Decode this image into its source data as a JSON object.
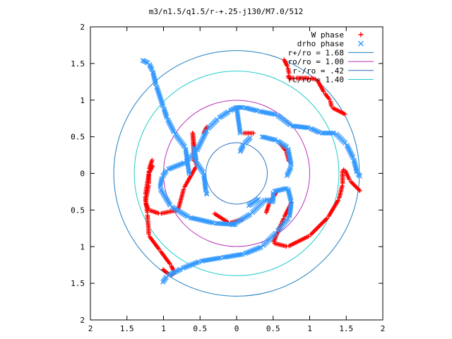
{
  "chart_data": {
    "type": "scatter",
    "title": "m3/n1.5/q1.5/r-+.25-j130/M7.0/512",
    "xlabel": "",
    "ylabel": "",
    "xlim": [
      -2,
      2
    ],
    "ylim": [
      -2,
      2
    ],
    "x_tick_labels": [
      "2",
      "1.5",
      "1",
      "0.5",
      "0",
      "0.5",
      "1",
      "1.5",
      "2"
    ],
    "y_tick_labels": [
      "2",
      "1.5",
      "1",
      "0.5",
      "0",
      "0.5",
      "1",
      "1.5",
      "2"
    ],
    "grid": false,
    "legend_position": "top-right",
    "legend": [
      {
        "label": "W phase",
        "kind": "marker",
        "marker": "+",
        "color": "#ff0000"
      },
      {
        "label": "drho phase",
        "kind": "marker",
        "marker": "x",
        "color": "#3399ff"
      },
      {
        "label": "r+/ro = 1.68",
        "kind": "line",
        "color": "#1f7fbf"
      },
      {
        "label": "ro/ro = 1.00",
        "kind": "line",
        "color": "#b833b8"
      },
      {
        "label": "r-/ro = .42",
        "kind": "line",
        "color": "#2a6fbf"
      },
      {
        "label": "rc/ro = 1.40",
        "kind": "line",
        "color": "#22cccc"
      }
    ],
    "circles": [
      {
        "name": "r+/ro = 1.68",
        "r": 1.68,
        "color": "#1f7fbf"
      },
      {
        "name": "ro/ro = 1.00",
        "r": 1.0,
        "color": "#b833b8"
      },
      {
        "name": "r-/ro = .42",
        "r": 0.42,
        "color": "#2a6fbf"
      },
      {
        "name": "rc/ro = 1.40",
        "r": 1.4,
        "color": "#22cccc"
      }
    ],
    "series": [
      {
        "name": "W phase",
        "marker": "+",
        "color": "#ff0000",
        "curves": [
          [
            [
              0.65,
              1.55
            ],
            [
              0.7,
              1.45
            ],
            [
              0.72,
              1.35
            ],
            [
              0.7,
              1.3
            ],
            [
              0.8,
              1.3
            ],
            [
              1.0,
              1.3
            ],
            [
              1.1,
              1.28
            ],
            [
              1.2,
              1.1
            ],
            [
              1.28,
              1.0
            ],
            [
              1.3,
              0.9
            ],
            [
              1.5,
              0.8
            ]
          ],
          [
            [
              -0.6,
              0.55
            ],
            [
              -0.55,
              0.1
            ],
            [
              -0.72,
              -0.2
            ],
            [
              -0.8,
              -0.5
            ],
            [
              -1.05,
              -0.55
            ],
            [
              -1.2,
              -0.5
            ],
            [
              -1.25,
              -0.4
            ],
            [
              -1.2,
              -0.15
            ],
            [
              -1.2,
              0.05
            ],
            [
              -1.15,
              0.2
            ]
          ],
          [
            [
              -1.15,
              0.1
            ],
            [
              -1.2,
              0.0
            ],
            [
              -1.25,
              -0.3
            ],
            [
              -1.22,
              -0.55
            ],
            [
              -1.2,
              -0.85
            ],
            [
              -1.05,
              -1.05
            ],
            [
              -0.9,
              -1.25
            ],
            [
              -0.85,
              -1.35
            ],
            [
              -0.9,
              -1.4
            ],
            [
              -1.02,
              -1.3
            ]
          ],
          [
            [
              0.75,
              -0.4
            ],
            [
              0.65,
              -0.6
            ],
            [
              0.5,
              -0.95
            ],
            [
              0.7,
              -1.0
            ],
            [
              1.0,
              -0.85
            ],
            [
              1.25,
              -0.6
            ],
            [
              1.4,
              -0.35
            ],
            [
              1.45,
              -0.15
            ],
            [
              1.45,
              0.05
            ],
            [
              1.48,
              0.05
            ],
            [
              1.55,
              -0.1
            ],
            [
              1.7,
              -0.25
            ]
          ],
          [
            [
              0.1,
              0.55
            ],
            [
              0.25,
              0.55
            ]
          ],
          [
            [
              -0.6,
              0.55
            ],
            [
              -0.58,
              0.15
            ]
          ],
          [
            [
              -0.45,
              0.55
            ],
            [
              -0.4,
              0.65
            ]
          ],
          [
            [
              0.55,
              -0.25
            ],
            [
              0.45,
              -0.4
            ],
            [
              0.4,
              -0.55
            ]
          ],
          [
            [
              0.6,
              0.4
            ],
            [
              0.68,
              0.3
            ],
            [
              0.72,
              0.15
            ]
          ],
          [
            [
              -0.3,
              -0.55
            ],
            [
              -0.1,
              -0.68
            ],
            [
              0.1,
              -0.62
            ]
          ]
        ]
      },
      {
        "name": "drho phase",
        "marker": "x",
        "color": "#3399ff",
        "curves": [
          [
            [
              0.05,
              0.55
            ],
            [
              0.0,
              0.9
            ],
            [
              -0.1,
              0.85
            ],
            [
              -0.25,
              0.75
            ],
            [
              -0.4,
              0.6
            ],
            [
              -0.55,
              0.3
            ],
            [
              -0.7,
              0.15
            ],
            [
              -0.95,
              0.05
            ],
            [
              -1.02,
              -0.05
            ],
            [
              -1.05,
              -0.2
            ],
            [
              -0.9,
              -0.45
            ],
            [
              -0.65,
              -0.6
            ],
            [
              -0.3,
              -0.68
            ],
            [
              0.0,
              -0.7
            ]
          ],
          [
            [
              -0.05,
              -0.7
            ],
            [
              0.2,
              -0.55
            ],
            [
              0.4,
              -0.35
            ],
            [
              0.5,
              -0.4
            ],
            [
              0.5,
              -0.25
            ],
            [
              0.7,
              -0.2
            ],
            [
              0.75,
              -0.4
            ],
            [
              0.72,
              -0.6
            ],
            [
              0.55,
              -0.8
            ],
            [
              0.35,
              -1.0
            ],
            [
              0.1,
              -1.1
            ],
            [
              -0.2,
              -1.15
            ],
            [
              -0.5,
              -1.2
            ],
            [
              -0.75,
              -1.3
            ],
            [
              -0.95,
              -1.4
            ],
            [
              -1.02,
              -1.5
            ]
          ],
          [
            [
              0.0,
              0.9
            ],
            [
              0.1,
              0.9
            ],
            [
              0.3,
              0.85
            ],
            [
              0.55,
              0.8
            ],
            [
              0.75,
              0.65
            ],
            [
              1.0,
              0.62
            ],
            [
              1.15,
              0.55
            ],
            [
              1.35,
              0.55
            ],
            [
              1.5,
              0.4
            ],
            [
              1.6,
              0.2
            ],
            [
              1.65,
              0.0
            ],
            [
              1.7,
              -0.05
            ]
          ],
          [
            [
              -0.65,
              0.0
            ],
            [
              -0.7,
              0.35
            ],
            [
              -0.85,
              0.55
            ],
            [
              -0.95,
              0.75
            ],
            [
              -1.0,
              0.9
            ],
            [
              -1.1,
              1.2
            ],
            [
              -1.15,
              1.4
            ],
            [
              -1.2,
              1.5
            ],
            [
              -1.3,
              1.55
            ]
          ],
          [
            [
              0.35,
              0.5
            ],
            [
              0.55,
              0.45
            ],
            [
              0.7,
              0.35
            ],
            [
              0.75,
              0.1
            ],
            [
              0.68,
              -0.05
            ]
          ],
          [
            [
              -0.58,
              0.35
            ],
            [
              -0.55,
              0.15
            ],
            [
              -0.45,
              0.0
            ],
            [
              -0.42,
              -0.25
            ],
            [
              -0.4,
              -0.3
            ]
          ],
          [
            [
              0.05,
              0.3
            ],
            [
              0.1,
              0.4
            ],
            [
              0.2,
              0.5
            ]
          ],
          [
            [
              0.3,
              -0.35
            ],
            [
              0.15,
              -0.45
            ]
          ]
        ]
      }
    ]
  }
}
